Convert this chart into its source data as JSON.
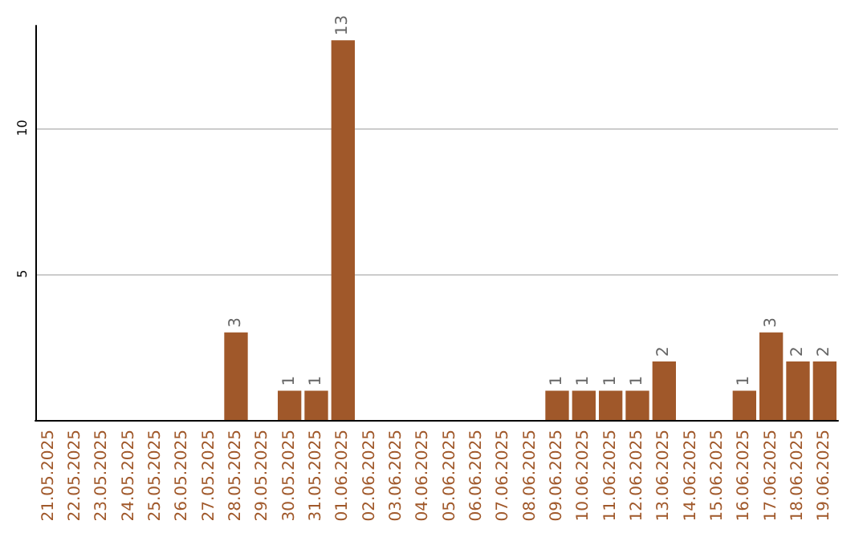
{
  "chart_data": {
    "type": "bar",
    "categories": [
      "21.05.2025",
      "22.05.2025",
      "23.05.2025",
      "24.05.2025",
      "25.05.2025",
      "26.05.2025",
      "27.05.2025",
      "28.05.2025",
      "29.05.2025",
      "30.05.2025",
      "31.05.2025",
      "01.06.2025",
      "02.06.2025",
      "03.06.2025",
      "04.06.2025",
      "05.06.2025",
      "06.06.2025",
      "07.06.2025",
      "08.06.2025",
      "09.06.2025",
      "10.06.2025",
      "11.06.2025",
      "12.06.2025",
      "13.06.2025",
      "14.06.2025",
      "15.06.2025",
      "16.06.2025",
      "17.06.2025",
      "18.06.2025",
      "19.06.2025"
    ],
    "values": [
      0,
      0,
      0,
      0,
      0,
      0,
      0,
      3,
      0,
      1,
      1,
      13,
      0,
      0,
      0,
      0,
      0,
      0,
      0,
      1,
      1,
      1,
      1,
      2,
      0,
      0,
      1,
      3,
      2,
      2
    ],
    "value_labels": [
      null,
      null,
      null,
      null,
      null,
      null,
      null,
      "3",
      null,
      "1",
      "1",
      "13",
      null,
      null,
      null,
      null,
      null,
      null,
      null,
      "1",
      "1",
      "1",
      "1",
      "2",
      null,
      null,
      "1",
      "3",
      "2",
      "2"
    ],
    "color": "#a0582a",
    "ylim": [
      0,
      13.5
    ],
    "yticks": [
      5,
      10
    ],
    "grid": "y"
  }
}
